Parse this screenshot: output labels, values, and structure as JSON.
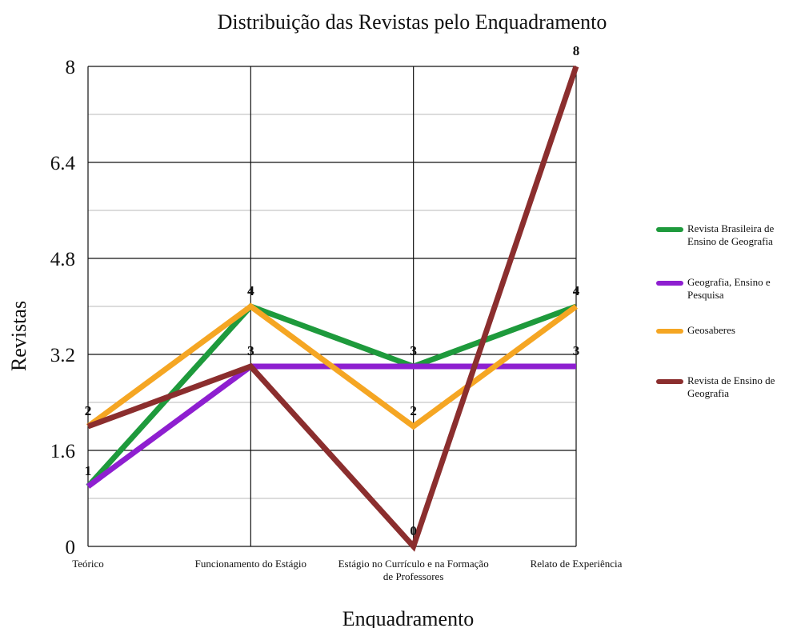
{
  "chart_data": {
    "type": "line",
    "title": "Distribuição das Revistas pelo Enquadramento",
    "x_label": "Enquadramento",
    "y_label": "Revistas",
    "categories": [
      "Teórico",
      "Funcionamento do Estágio",
      "Estágio no Currículo e na Formação de Professores",
      "Relato de Experiência"
    ],
    "series": [
      {
        "name": "Revista Brasileira de Ensino de Geografia",
        "color": "#1e9a3c",
        "values": [
          1,
          4,
          3,
          4
        ]
      },
      {
        "name": "Geografia, Ensino e Pesquisa",
        "color": "#8e1fd0",
        "values": [
          1,
          3,
          3,
          3
        ]
      },
      {
        "name": "Geosaberes",
        "color": "#f5a623",
        "values": [
          2,
          4,
          2,
          4
        ]
      },
      {
        "name": "Revista de Ensino de Geografia",
        "color": "#8b2e2e",
        "values": [
          2,
          3,
          0,
          8
        ]
      }
    ],
    "ylim": [
      0,
      8
    ],
    "yticks": [
      0,
      1.6,
      3.2,
      4.8,
      6.4,
      8
    ],
    "yminorticks": [
      0.8,
      2.4,
      4,
      5.6,
      7.2
    ],
    "grid": true,
    "legend": "right",
    "data_labels": true
  }
}
